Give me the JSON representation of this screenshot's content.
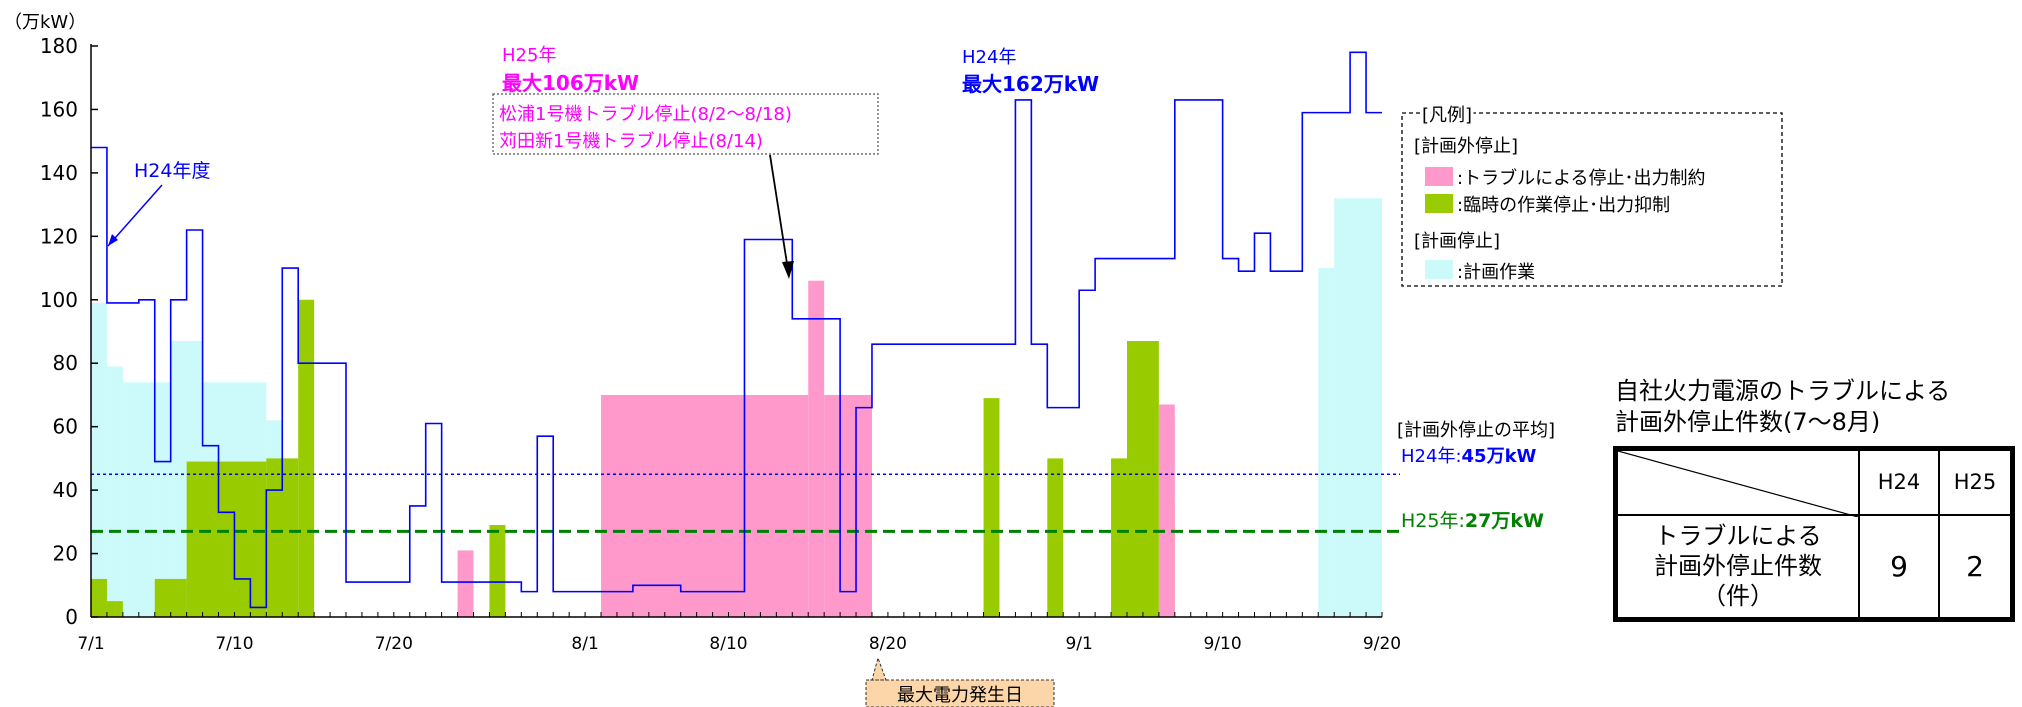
{
  "chart_data": {
    "type": "area",
    "ylabel": "（万kW）",
    "ylim": [
      0,
      180
    ],
    "yticks": [
      0,
      20,
      40,
      60,
      80,
      100,
      120,
      140,
      160,
      180
    ],
    "x_range": [
      "7/1",
      "9/20"
    ],
    "x_tick_labels": [
      "7/1",
      "7/10",
      "7/20",
      "8/1",
      "8/10",
      "8/20",
      "9/1",
      "9/10",
      "9/20"
    ],
    "series": [
      {
        "name": "H24年度",
        "kind": "step-line",
        "color": "#0000ff",
        "points": [
          [
            "7/1",
            148
          ],
          [
            "7/2",
            99
          ],
          [
            "7/4",
            100
          ],
          [
            "7/5",
            49
          ],
          [
            "7/6",
            100
          ],
          [
            "7/7",
            122
          ],
          [
            "7/8",
            54
          ],
          [
            "7/9",
            33
          ],
          [
            "7/10",
            12
          ],
          [
            "7/11",
            3
          ],
          [
            "7/12",
            40
          ],
          [
            "7/13",
            110
          ],
          [
            "7/14",
            80
          ],
          [
            "7/17",
            11
          ],
          [
            "7/21",
            35
          ],
          [
            "7/22",
            61
          ],
          [
            "7/23",
            11
          ],
          [
            "7/28",
            8
          ],
          [
            "7/29",
            57
          ],
          [
            "7/30",
            8
          ],
          [
            "8/4",
            10
          ],
          [
            "8/7",
            8
          ],
          [
            "8/11",
            119
          ],
          [
            "8/14",
            94
          ],
          [
            "8/17",
            8
          ],
          [
            "8/18",
            66
          ],
          [
            "8/19",
            86
          ],
          [
            "8/28",
            163
          ],
          [
            "8/29",
            86
          ],
          [
            "8/30",
            66
          ],
          [
            "9/1",
            103
          ],
          [
            "9/2",
            113
          ],
          [
            "9/7",
            163
          ],
          [
            "9/10",
            113
          ],
          [
            "9/11",
            109
          ],
          [
            "9/12",
            121
          ],
          [
            "9/13",
            109
          ],
          [
            "9/15",
            159
          ],
          [
            "9/18",
            178
          ],
          [
            "9/19",
            159
          ],
          [
            "9/20",
            159
          ]
        ]
      },
      {
        "name": "計画作業",
        "kind": "step-area",
        "color": "#ccfafa",
        "points": [
          [
            "7/1",
            99
          ],
          [
            "7/2",
            79
          ],
          [
            "7/3",
            74
          ],
          [
            "7/5",
            74
          ],
          [
            "7/6",
            87
          ],
          [
            "7/8",
            74
          ],
          [
            "7/12",
            62
          ],
          [
            "7/13",
            0
          ],
          [
            "9/16",
            110
          ],
          [
            "9/17",
            132
          ],
          [
            "9/20",
            0
          ]
        ]
      },
      {
        "name": "臨時の作業停止･出力抑制",
        "kind": "step-area",
        "color": "#99cc00",
        "points": [
          [
            "7/1",
            12
          ],
          [
            "7/2",
            5
          ],
          [
            "7/3",
            0
          ],
          [
            "7/5",
            12
          ],
          [
            "7/7",
            49
          ],
          [
            "7/12",
            50
          ],
          [
            "7/14",
            100
          ],
          [
            "7/15",
            0
          ],
          [
            "7/26",
            29
          ],
          [
            "7/27",
            0
          ],
          [
            "8/26",
            69
          ],
          [
            "8/27",
            0
          ],
          [
            "8/30",
            50
          ],
          [
            "8/31",
            0
          ],
          [
            "9/3",
            50
          ],
          [
            "9/4",
            87
          ],
          [
            "9/6",
            37
          ],
          [
            "9/7",
            0
          ]
        ]
      },
      {
        "name": "トラブルによる停止･出力制約",
        "kind": "step-area",
        "color": "#ff99cc",
        "points": [
          [
            "7/24",
            21
          ],
          [
            "7/25",
            0
          ],
          [
            "8/2",
            70
          ],
          [
            "8/15",
            106
          ],
          [
            "8/16",
            70
          ],
          [
            "8/19",
            0
          ],
          [
            "9/6",
            67
          ],
          [
            "9/7",
            0
          ]
        ]
      }
    ],
    "reference_lines": [
      {
        "name": "H24年",
        "value": 45,
        "color": "#0000ff",
        "style": "dotted"
      },
      {
        "name": "H25年",
        "value": 27,
        "color": "#008000",
        "style": "dashed"
      }
    ],
    "annotations": {
      "h24_fy_label": "H24年度",
      "h25_peak_year": "H25年",
      "h25_peak_value": "最大106万kW",
      "h25_trouble_1": "松浦1号機トラブル停止(8/2～8/18)",
      "h25_trouble_2": "苅田新1号機トラブル停止(8/14)",
      "h24_peak_year": "H24年",
      "h24_peak_value": "最大162万kW",
      "avg_heading": "[計画外停止の平均]",
      "h24_avg_prefix": "H24年:",
      "h24_avg_value": "45万kW",
      "h25_avg_prefix": "H25年:",
      "h25_avg_value": "27万kW",
      "max_demand_day": "最大電力発生日"
    },
    "legend": {
      "title": "[凡例]",
      "group1": "[計画外停止]",
      "item_trouble": ":トラブルによる停止･出力制約",
      "item_temp": ":臨時の作業停止･出力抑制",
      "group2": "[計画停止]",
      "item_planned": ":計画作業",
      "placement": "right"
    }
  },
  "side_table": {
    "title_line1": "自社火力電源のトラブルによる",
    "title_line2": "計画外停止件数(7～8月)",
    "col_h24": "H24",
    "col_h25": "H25",
    "row_label_1": "トラブルによる",
    "row_label_2": "計画外停止件数",
    "row_label_3": "（件）",
    "h24_count": "9",
    "h25_count": "2"
  }
}
